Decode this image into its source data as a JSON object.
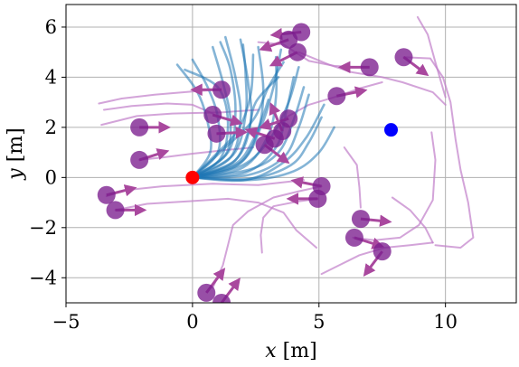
{
  "chart_data": {
    "type": "scatter",
    "xlabel_var": "x",
    "xlabel_unit": " [m]",
    "ylabel_var": "y",
    "ylabel_unit": " [m]",
    "xlim": [
      -5,
      12.8
    ],
    "ylim": [
      -5,
      6.9
    ],
    "x_ticks": [
      -5,
      0,
      5,
      10
    ],
    "y_ticks": [
      -4,
      -2,
      0,
      2,
      4,
      6
    ],
    "x_tick_labels": [
      "−5",
      "0",
      "5",
      "10"
    ],
    "y_tick_labels": [
      "−4",
      "−2",
      "0",
      "2",
      "4",
      "6"
    ],
    "grid": true,
    "legend": "none",
    "colors": {
      "planned_paths": "#1f77b4",
      "agent_trails": "#c17ec9",
      "agents": "#7b1e8e",
      "heading_arrows": "#a9489e",
      "start": "#ff0000",
      "goal": "#0000ff"
    },
    "start": {
      "x": 0,
      "y": 0
    },
    "goal": {
      "x": 7.85,
      "y": 1.9
    },
    "agents": [
      {
        "x": -3.4,
        "y": -0.7,
        "dx": 1.0,
        "dy": 0.25
      },
      {
        "x": -3.05,
        "y": -1.3,
        "dx": 1.0,
        "dy": 0.0
      },
      {
        "x": -2.1,
        "y": 0.7,
        "dx": 0.95,
        "dy": 0.3
      },
      {
        "x": -2.1,
        "y": 2.0,
        "dx": 1.0,
        "dy": 0.0
      },
      {
        "x": 1.15,
        "y": 3.5,
        "dx": -1.0,
        "dy": 0.0
      },
      {
        "x": 0.8,
        "y": 2.5,
        "dx": 1.0,
        "dy": -0.3
      },
      {
        "x": 0.95,
        "y": 1.75,
        "dx": 1.0,
        "dy": 0.05
      },
      {
        "x": 3.8,
        "y": 2.35,
        "dx": -0.95,
        "dy": -0.3
      },
      {
        "x": 3.55,
        "y": 1.85,
        "dx": -0.4,
        "dy": 0.95
      },
      {
        "x": 3.25,
        "y": 1.55,
        "dx": -0.95,
        "dy": 0.3
      },
      {
        "x": 2.85,
        "y": 1.3,
        "dx": 0.8,
        "dy": -0.6
      },
      {
        "x": 3.8,
        "y": 5.5,
        "dx": -1.0,
        "dy": -0.35
      },
      {
        "x": 4.3,
        "y": 5.8,
        "dx": -1.0,
        "dy": -0.1
      },
      {
        "x": 4.15,
        "y": 5.0,
        "dx": -0.9,
        "dy": -0.45
      },
      {
        "x": 7.0,
        "y": 4.4,
        "dx": -1.0,
        "dy": 0.0
      },
      {
        "x": 8.35,
        "y": 4.8,
        "dx": 0.8,
        "dy": -0.6
      },
      {
        "x": 5.7,
        "y": 3.25,
        "dx": 1.0,
        "dy": 0.2
      },
      {
        "x": 5.1,
        "y": -0.35,
        "dx": -1.0,
        "dy": 0.2
      },
      {
        "x": 4.95,
        "y": -0.85,
        "dx": -1.0,
        "dy": 0.0
      },
      {
        "x": 6.65,
        "y": -1.65,
        "dx": 1.0,
        "dy": -0.1
      },
      {
        "x": 6.4,
        "y": -2.4,
        "dx": 0.95,
        "dy": -0.3
      },
      {
        "x": 7.5,
        "y": -2.95,
        "dx": -0.6,
        "dy": -0.8
      },
      {
        "x": 0.55,
        "y": -4.6,
        "dx": 0.6,
        "dy": 0.8
      },
      {
        "x": 1.15,
        "y": -5.0,
        "dx": 0.6,
        "dy": 0.8
      }
    ],
    "agent_trails": [
      [
        [
          -3.7,
          2.95
        ],
        [
          -2.8,
          3.15
        ],
        [
          -1.5,
          3.3
        ],
        [
          0.2,
          3.45
        ],
        [
          1.1,
          3.5
        ]
      ],
      [
        [
          -3.5,
          2.7
        ],
        [
          -2.4,
          2.85
        ],
        [
          -1.0,
          2.95
        ],
        [
          0.0,
          2.9
        ],
        [
          0.8,
          2.55
        ]
      ],
      [
        [
          -3.6,
          2.1
        ],
        [
          -2.2,
          2.45
        ],
        [
          -0.8,
          2.55
        ],
        [
          1.2,
          2.6
        ],
        [
          2.6,
          2.7
        ]
      ],
      [
        [
          -3.4,
          -0.75
        ],
        [
          -2.6,
          -0.5
        ],
        [
          -1.2,
          -0.35
        ],
        [
          0.8,
          -0.25
        ],
        [
          2.6,
          -0.3
        ],
        [
          4.4,
          -0.1
        ]
      ],
      [
        [
          -3.05,
          -1.3
        ],
        [
          -1.8,
          -1.05
        ],
        [
          -0.2,
          -0.95
        ],
        [
          1.4,
          -0.85
        ],
        [
          2.6,
          -1.0
        ],
        [
          3.6,
          -1.4
        ],
        [
          4.1,
          -2.1
        ],
        [
          4.9,
          -2.8
        ]
      ],
      [
        [
          -2.1,
          0.7
        ],
        [
          -1.2,
          0.8
        ],
        [
          0.0,
          0.95
        ],
        [
          1.4,
          1.1
        ],
        [
          2.4,
          1.2
        ]
      ],
      [
        [
          5.1,
          -0.35
        ],
        [
          4.2,
          -0.55
        ],
        [
          3.2,
          -0.8
        ],
        [
          2.2,
          -1.35
        ],
        [
          1.6,
          -1.9
        ],
        [
          1.4,
          -2.7
        ],
        [
          1.2,
          -3.5
        ],
        [
          0.8,
          -4.4
        ]
      ],
      [
        [
          4.95,
          -0.85
        ],
        [
          4.2,
          -0.95
        ],
        [
          3.2,
          -1.15
        ],
        [
          2.8,
          -1.6
        ],
        [
          2.7,
          -2.3
        ],
        [
          2.75,
          -3.0
        ]
      ],
      [
        [
          4.2,
          5.0
        ],
        [
          5.4,
          4.5
        ],
        [
          6.3,
          4.2
        ],
        [
          7.5,
          4.0
        ],
        [
          8.3,
          3.8
        ],
        [
          9.5,
          3.4
        ],
        [
          10.0,
          2.9
        ]
      ],
      [
        [
          2.6,
          5.4
        ],
        [
          3.6,
          5.3
        ],
        [
          4.6,
          4.65
        ],
        [
          5.6,
          4.45
        ],
        [
          6.5,
          4.4
        ]
      ],
      [
        [
          8.35,
          4.8
        ],
        [
          9.4,
          4.75
        ],
        [
          9.9,
          4.0
        ],
        [
          10.2,
          3.0
        ],
        [
          10.4,
          1.5
        ],
        [
          10.6,
          0.3
        ],
        [
          10.9,
          -1.0
        ],
        [
          11.1,
          -2.4
        ],
        [
          10.6,
          -2.8
        ],
        [
          9.6,
          -2.7
        ]
      ],
      [
        [
          8.9,
          6.4
        ],
        [
          9.3,
          5.7
        ],
        [
          9.6,
          4.6
        ],
        [
          10.0,
          3.2
        ]
      ],
      [
        [
          7.9,
          -0.8
        ],
        [
          8.6,
          -1.3
        ],
        [
          9.2,
          -2.0
        ],
        [
          9.5,
          -2.6
        ]
      ],
      [
        [
          9.5,
          -2.6
        ],
        [
          8.6,
          -2.7
        ],
        [
          7.6,
          -2.8
        ],
        [
          6.6,
          -3.1
        ],
        [
          5.8,
          -3.5
        ],
        [
          5.1,
          -3.85
        ]
      ],
      [
        [
          6.0,
          1.2
        ],
        [
          6.5,
          0.5
        ],
        [
          6.6,
          -0.4
        ],
        [
          6.65,
          -1.2
        ]
      ],
      [
        [
          6.35,
          -2.4
        ],
        [
          7.2,
          -2.5
        ],
        [
          8.2,
          -2.4
        ],
        [
          8.95,
          -1.9
        ],
        [
          9.5,
          -0.9
        ],
        [
          9.6,
          0.7
        ],
        [
          9.45,
          1.8
        ]
      ],
      [
        [
          3.7,
          2.4
        ],
        [
          4.6,
          2.9
        ],
        [
          5.6,
          3.2
        ],
        [
          6.6,
          3.55
        ],
        [
          7.5,
          3.8
        ]
      ]
    ],
    "planned_paths": [
      [
        [
          0,
          0
        ],
        [
          0.7,
          1.0
        ],
        [
          0.6,
          2.2
        ],
        [
          0.2,
          3.4
        ],
        [
          -0.6,
          4.5
        ]
      ],
      [
        [
          0,
          0
        ],
        [
          1.0,
          1.0
        ],
        [
          1.0,
          2.4
        ],
        [
          0.6,
          3.6
        ],
        [
          0.0,
          4.7
        ]
      ],
      [
        [
          0,
          0
        ],
        [
          1.3,
          0.9
        ],
        [
          1.5,
          2.3
        ],
        [
          1.2,
          3.8
        ],
        [
          0.8,
          5.2
        ]
      ],
      [
        [
          0,
          0
        ],
        [
          1.5,
          0.8
        ],
        [
          1.9,
          2.4
        ],
        [
          1.7,
          4.0
        ],
        [
          1.3,
          5.6
        ]
      ],
      [
        [
          0,
          0
        ],
        [
          1.7,
          0.7
        ],
        [
          2.3,
          2.2
        ],
        [
          2.2,
          3.8
        ],
        [
          1.9,
          5.5
        ]
      ],
      [
        [
          0,
          0
        ],
        [
          1.8,
          0.5
        ],
        [
          2.6,
          1.9
        ],
        [
          2.8,
          3.5
        ],
        [
          2.6,
          5.2
        ]
      ],
      [
        [
          0,
          0
        ],
        [
          2.0,
          0.4
        ],
        [
          3.0,
          1.7
        ],
        [
          3.3,
          3.2
        ],
        [
          3.3,
          4.8
        ]
      ],
      [
        [
          0,
          0
        ],
        [
          2.1,
          0.2
        ],
        [
          3.3,
          1.2
        ],
        [
          3.7,
          2.6
        ],
        [
          4.0,
          4.0
        ]
      ],
      [
        [
          0,
          0
        ],
        [
          2.2,
          0.1
        ],
        [
          3.6,
          0.8
        ],
        [
          4.2,
          2.0
        ],
        [
          4.6,
          3.3
        ]
      ],
      [
        [
          0,
          0
        ],
        [
          2.3,
          -0.05
        ],
        [
          3.9,
          0.5
        ],
        [
          4.6,
          1.4
        ],
        [
          5.1,
          2.4
        ]
      ],
      [
        [
          0,
          0
        ],
        [
          2.3,
          -0.1
        ],
        [
          4.0,
          0.25
        ],
        [
          5.0,
          1.0
        ],
        [
          5.6,
          2.0
        ]
      ],
      [
        [
          0,
          0
        ],
        [
          1.6,
          0.6
        ],
        [
          2.2,
          1.8
        ],
        [
          2.5,
          3.0
        ],
        [
          3.4,
          4.0
        ]
      ],
      [
        [
          0,
          0
        ],
        [
          1.4,
          1.0
        ],
        [
          1.7,
          2.6
        ],
        [
          1.5,
          4.3
        ],
        [
          1.1,
          5.4
        ]
      ],
      [
        [
          0,
          0
        ],
        [
          1.6,
          0.9
        ],
        [
          2.1,
          2.5
        ],
        [
          2.1,
          4.1
        ],
        [
          2.0,
          5.3
        ]
      ],
      [
        [
          0,
          0
        ],
        [
          1.9,
          0.6
        ],
        [
          2.7,
          2.0
        ],
        [
          3.2,
          3.6
        ],
        [
          3.5,
          5.1
        ]
      ],
      [
        [
          0,
          0
        ],
        [
          2.0,
          0.5
        ],
        [
          3.1,
          1.6
        ],
        [
          3.8,
          3.0
        ],
        [
          4.2,
          4.4
        ]
      ],
      [
        [
          0,
          0
        ],
        [
          0.9,
          0.9
        ],
        [
          1.8,
          1.9
        ],
        [
          2.3,
          3.3
        ],
        [
          2.4,
          4.9
        ]
      ],
      [
        [
          0,
          0
        ],
        [
          1.1,
          0.75
        ],
        [
          1.4,
          2.2
        ],
        [
          1.0,
          3.6
        ],
        [
          -0.3,
          4.3
        ]
      ],
      [
        [
          0,
          0
        ],
        [
          2.2,
          0.3
        ],
        [
          3.4,
          1.0
        ],
        [
          4.0,
          2.3
        ],
        [
          4.4,
          3.6
        ]
      ],
      [
        [
          0,
          0
        ],
        [
          1.2,
          1.1
        ],
        [
          2.4,
          2.3
        ],
        [
          3.0,
          3.6
        ],
        [
          3.6,
          4.6
        ]
      ],
      [
        [
          0,
          0
        ],
        [
          2.1,
          -0.1
        ],
        [
          3.6,
          0.6
        ],
        [
          4.5,
          1.6
        ],
        [
          5.2,
          2.9
        ]
      ],
      [
        [
          0,
          0
        ],
        [
          1.7,
          0.55
        ],
        [
          2.4,
          1.5
        ],
        [
          2.8,
          2.5
        ],
        [
          3.0,
          3.1
        ]
      ]
    ]
  }
}
